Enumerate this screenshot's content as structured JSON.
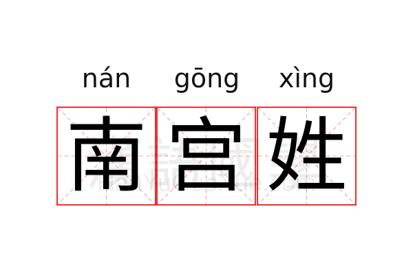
{
  "characters": [
    {
      "char": "南",
      "pinyin": "nán"
    },
    {
      "char": "宫",
      "pinyin": "gōng"
    },
    {
      "char": "姓",
      "pinyin": "xìng"
    }
  ],
  "watermark": {
    "chinese": "漢語國學",
    "latin": "HanYuGuoXue.com"
  },
  "colors": {
    "grid_border": "#f03030",
    "guide_lines": "#f5a0a0",
    "text": "#000000"
  }
}
